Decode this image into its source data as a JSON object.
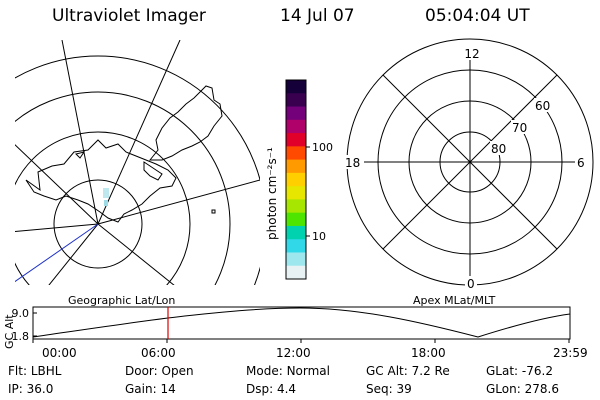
{
  "header": {
    "instrument": "Ultraviolet Imager",
    "date": "14 Jul 07",
    "time": "05:04:04 UT"
  },
  "left_map": {
    "label": "Geographic Lat/Lon"
  },
  "right_map": {
    "label": "Apex MLat/MLT",
    "mlt_labels": {
      "top": "12",
      "left": "18",
      "right": "6",
      "bottom": "0"
    },
    "lat_labels": [
      "60",
      "70",
      "80"
    ]
  },
  "colorbar": {
    "unit_label": "photon cm⁻²s⁻¹",
    "ticks": [
      "100",
      "10"
    ],
    "colors": [
      "#16003a",
      "#3a0050",
      "#74007a",
      "#b0006a",
      "#e0002a",
      "#ff4a00",
      "#ff9a00",
      "#ffcf00",
      "#e6e600",
      "#a6e600",
      "#4ee600",
      "#00d2b0",
      "#30d8e8",
      "#9ee7ef",
      "#e8f2f4"
    ]
  },
  "timeline": {
    "ylabel": "GC Alt",
    "y_ticks": [
      "9.0",
      "1.8"
    ],
    "x_ticks": [
      "00:00",
      "06:00",
      "12:00",
      "18:00",
      "23:59"
    ],
    "current_time": "05:04"
  },
  "footer": {
    "row1": [
      {
        "label": "Flt:",
        "value": "LBHL"
      },
      {
        "label": "Door:",
        "value": "Open"
      },
      {
        "label": "Mode:",
        "value": "Normal"
      },
      {
        "label": "GC Alt:",
        "value": "7.2 Re"
      },
      {
        "label": "GLat:",
        "value": "-76.2"
      }
    ],
    "row2": [
      {
        "label": "IP:",
        "value": "36.0"
      },
      {
        "label": "Gain:",
        "value": "14"
      },
      {
        "label": "Dsp:",
        "value": "4.4"
      },
      {
        "label": "Seq:",
        "value": "39"
      },
      {
        "label": "GLon:",
        "value": "278.6"
      }
    ]
  }
}
